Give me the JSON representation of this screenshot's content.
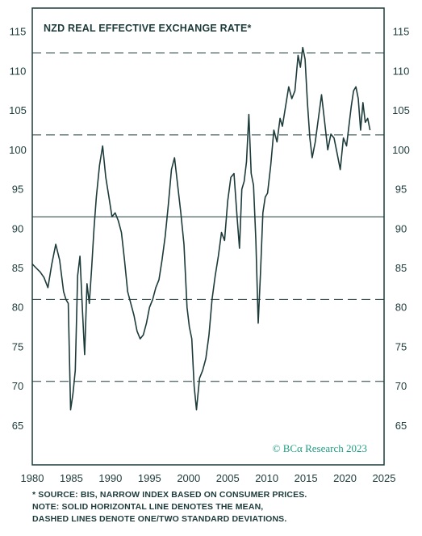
{
  "chart_data": {
    "type": "line",
    "title": "NZD REAL EFFECTIVE EXCHANGE RATE*",
    "xlabel": "",
    "ylabel": "",
    "xlim": [
      1980,
      2025
    ],
    "ylim": [
      60,
      118
    ],
    "x_ticks": [
      "1980",
      "1985",
      "1990",
      "1995",
      "2000",
      "2005",
      "2010",
      "2015",
      "2020",
      "2025"
    ],
    "y_ticks": [
      "65",
      "70",
      "75",
      "80",
      "85",
      "90",
      "95",
      "100",
      "105",
      "110",
      "115"
    ],
    "y_axis_both_sides": true,
    "grid": false,
    "series": [
      {
        "values_x": [
          1980.0,
          1980.5,
          1981.0,
          1981.5,
          1982.0,
          1982.5,
          1983.0,
          1983.5,
          1984.0,
          1984.3,
          1984.6,
          1984.9,
          1985.2,
          1985.5,
          1985.8,
          1986.1,
          1986.4,
          1986.7,
          1987.0,
          1987.3,
          1987.6,
          1987.9,
          1988.2,
          1988.6,
          1989.0,
          1989.4,
          1989.8,
          1990.2,
          1990.6,
          1991.0,
          1991.4,
          1991.8,
          1992.2,
          1992.6,
          1993.0,
          1993.4,
          1993.8,
          1994.2,
          1994.6,
          1995.0,
          1995.4,
          1995.8,
          1996.2,
          1996.6,
          1997.0,
          1997.4,
          1997.8,
          1998.2,
          1998.6,
          1999.0,
          1999.4,
          1999.8,
          2000.1,
          2000.4,
          2000.7,
          2001.0,
          2001.4,
          2001.8,
          2002.2,
          2002.6,
          2003.0,
          2003.4,
          2003.8,
          2004.2,
          2004.6,
          2005.0,
          2005.4,
          2005.8,
          2006.2,
          2006.5,
          2006.8,
          2007.1,
          2007.4,
          2007.7,
          2008.0,
          2008.3,
          2008.6,
          2008.9,
          2009.2,
          2009.5,
          2009.8,
          2010.1,
          2010.5,
          2010.9,
          2011.3,
          2011.7,
          2012.0,
          2012.4,
          2012.8,
          2013.2,
          2013.6,
          2014.0,
          2014.3,
          2014.6,
          2014.9,
          2015.2,
          2015.5,
          2015.8,
          2016.2,
          2016.6,
          2017.0,
          2017.4,
          2017.8,
          2018.2,
          2018.6,
          2019.0,
          2019.4,
          2019.8,
          2020.2,
          2020.5,
          2020.8,
          2021.1,
          2021.4,
          2021.7,
          2022.0,
          2022.3,
          2022.6,
          2022.9,
          2023.2
        ],
        "values_y": [
          85.5,
          85.0,
          84.5,
          83.8,
          82.5,
          85.5,
          88.0,
          86.0,
          82.0,
          81.0,
          80.5,
          67.0,
          69.0,
          72.0,
          84.0,
          86.5,
          80.0,
          74.0,
          83.0,
          80.5,
          85.0,
          90.0,
          94.0,
          98.0,
          100.5,
          96.5,
          94.0,
          91.5,
          92.0,
          91.0,
          89.5,
          86.0,
          82.0,
          80.5,
          79.0,
          77.0,
          76.0,
          76.5,
          78.0,
          80.0,
          81.0,
          82.5,
          83.5,
          86.0,
          89.0,
          93.0,
          97.5,
          99.0,
          95.5,
          92.0,
          88.0,
          80.0,
          77.5,
          76.0,
          70.0,
          67.0,
          71.0,
          72.0,
          73.5,
          76.5,
          81.0,
          84.0,
          86.5,
          89.5,
          88.5,
          93.5,
          96.5,
          97.0,
          91.5,
          87.5,
          95.0,
          96.0,
          98.5,
          104.5,
          97.0,
          95.5,
          88.5,
          78.0,
          84.5,
          92.0,
          94.0,
          94.5,
          98.0,
          102.5,
          101.0,
          104.0,
          103.0,
          105.5,
          108.0,
          106.5,
          107.5,
          112.0,
          110.5,
          113.0,
          111.5,
          106.0,
          101.5,
          99.0,
          101.0,
          104.0,
          107.0,
          103.5,
          100.0,
          102.0,
          101.5,
          99.5,
          97.5,
          101.5,
          100.5,
          103.0,
          105.5,
          107.5,
          108.0,
          106.5,
          102.5,
          106.0,
          103.5,
          104.0,
          102.5
        ]
      }
    ],
    "reference_lines": [
      {
        "y": 112.3,
        "style": "dashed"
      },
      {
        "y": 101.9,
        "style": "dashed"
      },
      {
        "y": 91.5,
        "style": "solid"
      },
      {
        "y": 81.0,
        "style": "dashed"
      },
      {
        "y": 70.6,
        "style": "dashed"
      }
    ],
    "brand": "© BCα Research 2023"
  },
  "colors": {
    "line": "#1d3b3a",
    "text": "#1d3b3a",
    "brand": "#1f9e83"
  },
  "notes": {
    "line1": "*  SOURCE: BIS, NARROW INDEX BASED ON CONSUMER PRICES.",
    "line2": "NOTE: SOLID HORIZONTAL LINE DENOTES THE MEAN,",
    "line3": "DASHED LINES DENOTE ONE/TWO STANDARD DEVIATIONS."
  }
}
